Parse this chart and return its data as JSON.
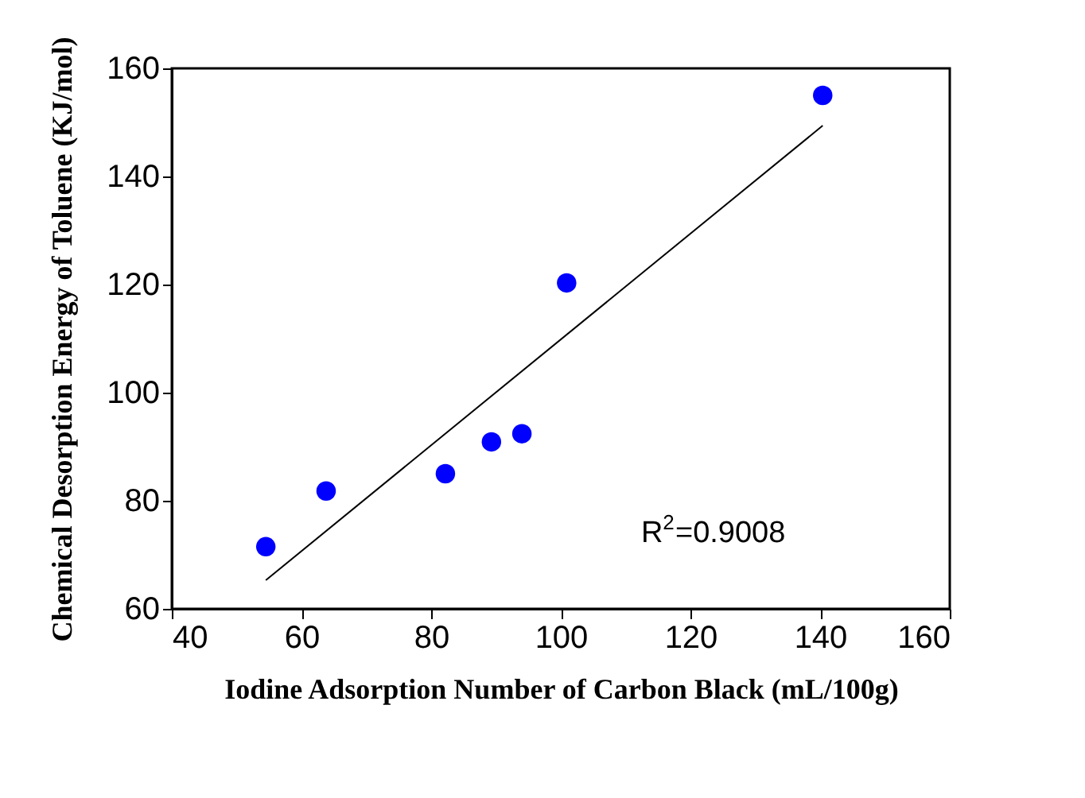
{
  "chart_data": {
    "type": "scatter",
    "xlabel": "Iodine Adsorption Number of Carbon Black (mL/100g)",
    "ylabel": "Chemical Desorption Energy of Toluene (KJ/mol)",
    "x": [
      54.5,
      63.8,
      82.2,
      89.3,
      94.0,
      100.9,
      140.4
    ],
    "series": [
      {
        "color": "#0000ff",
        "marker": "circle",
        "values": [
          71.5,
          81.8,
          85.0,
          90.9,
          92.4,
          120.3,
          155.0
        ]
      },
      {
        "type": "line",
        "color": "#000000",
        "line_style": "solid",
        "x": [
          54.5,
          140.4
        ],
        "values": [
          65.3,
          149.4
        ]
      }
    ],
    "xlim": [
      40,
      160
    ],
    "ylim": [
      60,
      160
    ],
    "xticks": [
      40,
      60,
      80,
      100,
      120,
      140,
      160
    ],
    "yticks": [
      60,
      80,
      100,
      120,
      140,
      160
    ],
    "annotations": [
      "R$^{2}$=0.9008"
    ],
    "grid": false,
    "legend": false
  }
}
